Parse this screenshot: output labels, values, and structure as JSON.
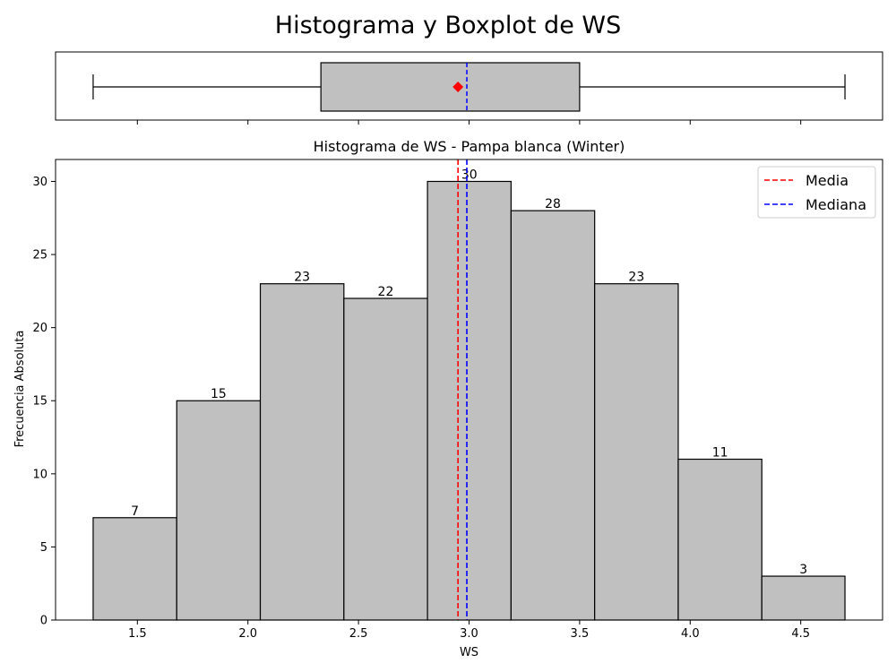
{
  "figure": {
    "suptitle": "Histograma y Boxplot de WS"
  },
  "colors": {
    "bar_fill": "#c0c0c0",
    "edge": "#000000",
    "mean_line": "#ff0000",
    "median_line": "#0000ff",
    "mean_marker": "#ff0000"
  },
  "chart_data": [
    {
      "type": "box",
      "orientation": "horizontal",
      "shares_x_with": "histogram",
      "xlim": [
        1.13,
        4.87
      ],
      "stats": {
        "whisker_low": 1.3,
        "q1": 2.33,
        "median": 2.99,
        "mean": 2.95,
        "q3": 3.5,
        "whisker_high": 4.7
      },
      "mean_marker": "diamond",
      "median_line_style": "dashed"
    },
    {
      "type": "bar",
      "subtype": "histogram",
      "title": "Histograma de WS - Pampa blanca (Winter)",
      "xlabel": "WS",
      "ylabel": "Frecuencia Absoluta",
      "xlim": [
        1.13,
        4.87
      ],
      "ylim": [
        0,
        31.5
      ],
      "xticks": [
        1.5,
        2.0,
        2.5,
        3.0,
        3.5,
        4.0,
        4.5
      ],
      "xtick_labels": [
        "1.5",
        "2.0",
        "2.5",
        "3.0",
        "3.5",
        "4.0",
        "4.5"
      ],
      "yticks": [
        0,
        5,
        10,
        15,
        20,
        25,
        30
      ],
      "ytick_labels": [
        "0",
        "5",
        "10",
        "15",
        "20",
        "25",
        "30"
      ],
      "bin_edges": [
        1.3,
        1.678,
        2.056,
        2.434,
        2.812,
        3.19,
        3.568,
        3.946,
        4.324,
        4.7
      ],
      "values": [
        7,
        15,
        23,
        22,
        30,
        28,
        23,
        11,
        3
      ],
      "value_labels": [
        "7",
        "15",
        "23",
        "22",
        "30",
        "28",
        "23",
        "11",
        "3"
      ],
      "mean": 2.95,
      "median": 2.99,
      "grid": false,
      "legend": {
        "position": "top-right",
        "entries": [
          {
            "label": "Media",
            "color": "#ff0000",
            "style": "dashed"
          },
          {
            "label": "Mediana",
            "color": "#0000ff",
            "style": "dashed"
          }
        ]
      }
    }
  ]
}
